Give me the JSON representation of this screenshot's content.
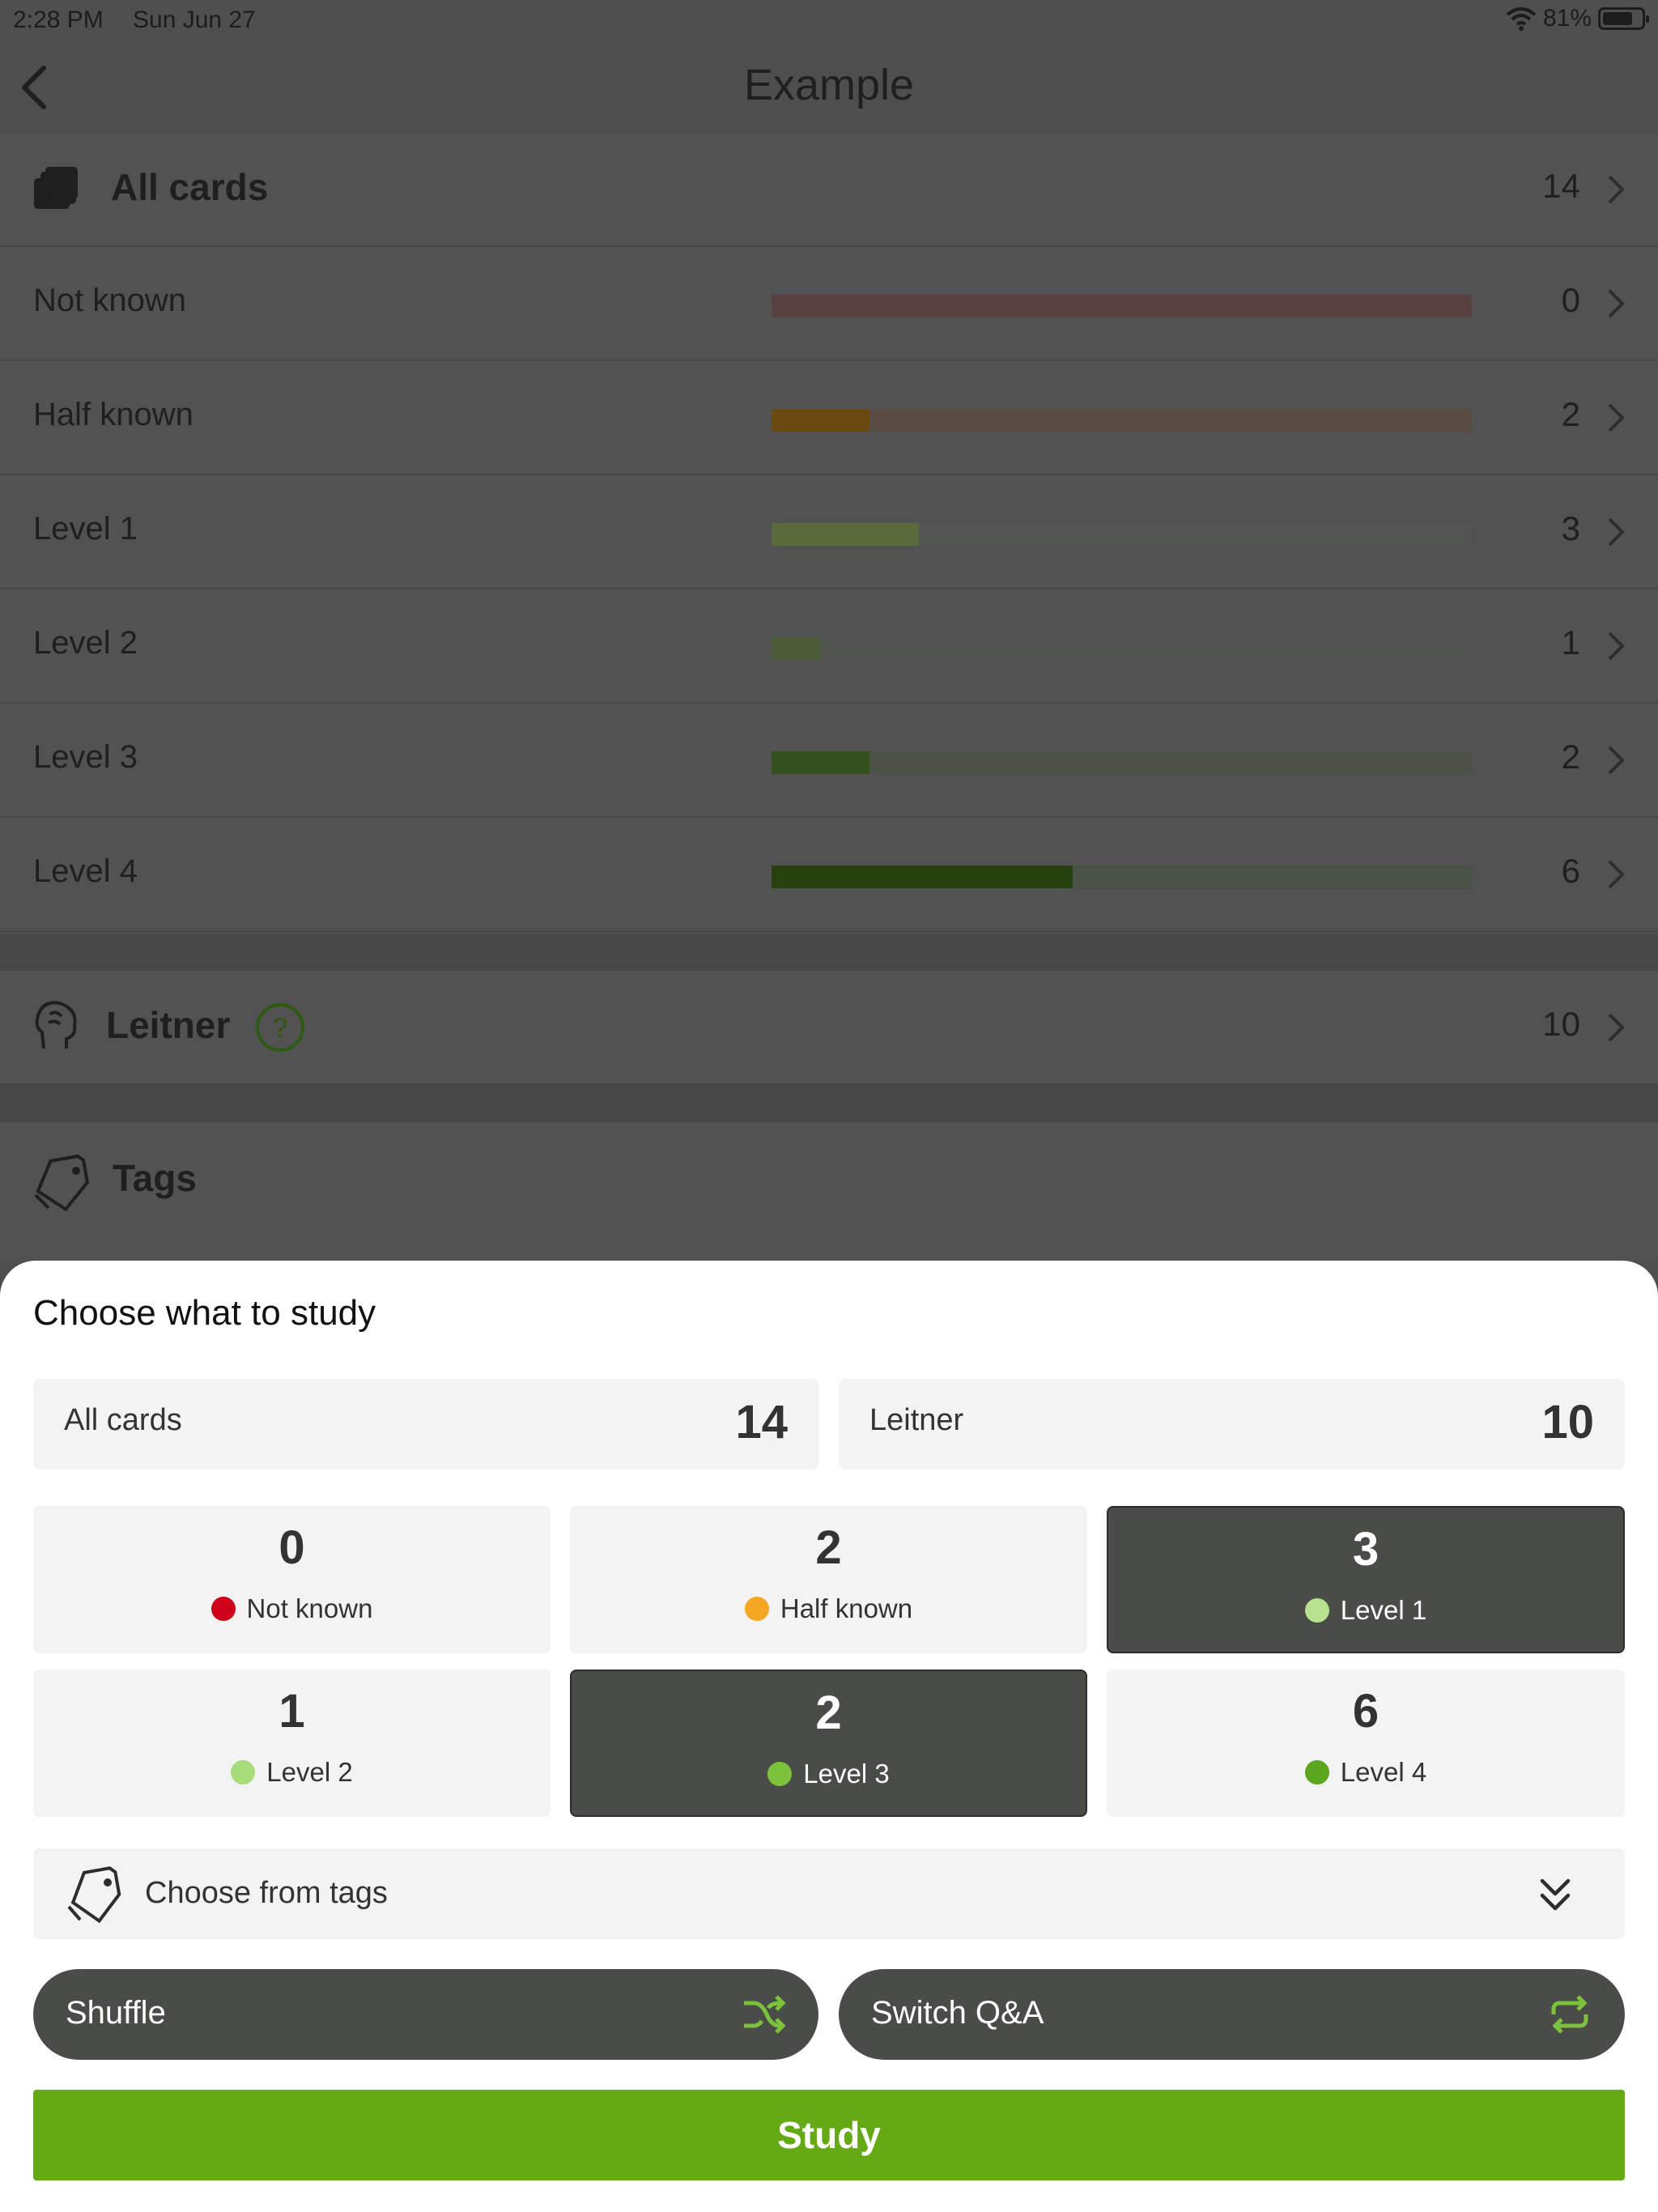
{
  "status_bar": {
    "time": "2:28 PM",
    "date": "Sun Jun 27",
    "battery": "81%",
    "battery_level": 0.81
  },
  "nav": {
    "title": "Example"
  },
  "all_cards": {
    "label": "All cards",
    "count": "14"
  },
  "levels": [
    {
      "label": "Not known",
      "count": "0",
      "fraction": 0,
      "fill_color": "#6b3a3a",
      "track_color": "#5a4141"
    },
    {
      "label": "Half known",
      "count": "2",
      "fraction": 0.14,
      "fill_color": "#6b4a12",
      "track_color": "#584c44"
    },
    {
      "label": "Level 1",
      "count": "3",
      "fraction": 0.21,
      "fill_color": "#5a6b3c",
      "track_color": "#535550"
    },
    {
      "label": "Level 2",
      "count": "1",
      "fraction": 0.07,
      "fill_color": "#4a5b35",
      "track_color": "#515450"
    },
    {
      "label": "Level 3",
      "count": "2",
      "fraction": 0.14,
      "fill_color": "#34501c",
      "track_color": "#4c5247"
    },
    {
      "label": "Level 4",
      "count": "6",
      "fraction": 0.43,
      "fill_color": "#28420f",
      "track_color": "#4a5145"
    }
  ],
  "leitner": {
    "label": "Leitner",
    "count": "10",
    "help": "?"
  },
  "tags_row": {
    "label": "Tags"
  },
  "sheet": {
    "heading": "Choose what to study",
    "all_cards": {
      "label": "All cards",
      "count": "14"
    },
    "leitner": {
      "label": "Leitner",
      "count": "10"
    },
    "tiles": [
      {
        "count": "0",
        "label": "Not known",
        "dot": "#d0021b",
        "selected": false
      },
      {
        "count": "2",
        "label": "Half known",
        "dot": "#f5a623",
        "selected": false
      },
      {
        "count": "3",
        "label": "Level 1",
        "dot": "#b8e28f",
        "selected": true
      },
      {
        "count": "1",
        "label": "Level 2",
        "dot": "#a6dc7a",
        "selected": false
      },
      {
        "count": "2",
        "label": "Level 3",
        "dot": "#7cc23c",
        "selected": true
      },
      {
        "count": "6",
        "label": "Level 4",
        "dot": "#5aa61c",
        "selected": false
      }
    ],
    "tags": {
      "label": "Choose from tags"
    },
    "shuffle": {
      "label": "Shuffle"
    },
    "switch_qa": {
      "label": "Switch Q&A"
    },
    "study": {
      "label": "Study"
    }
  },
  "colors": {
    "accent": "#65a914",
    "icon_green": "#7cc23c",
    "selected_tile": "#4a4c48"
  }
}
